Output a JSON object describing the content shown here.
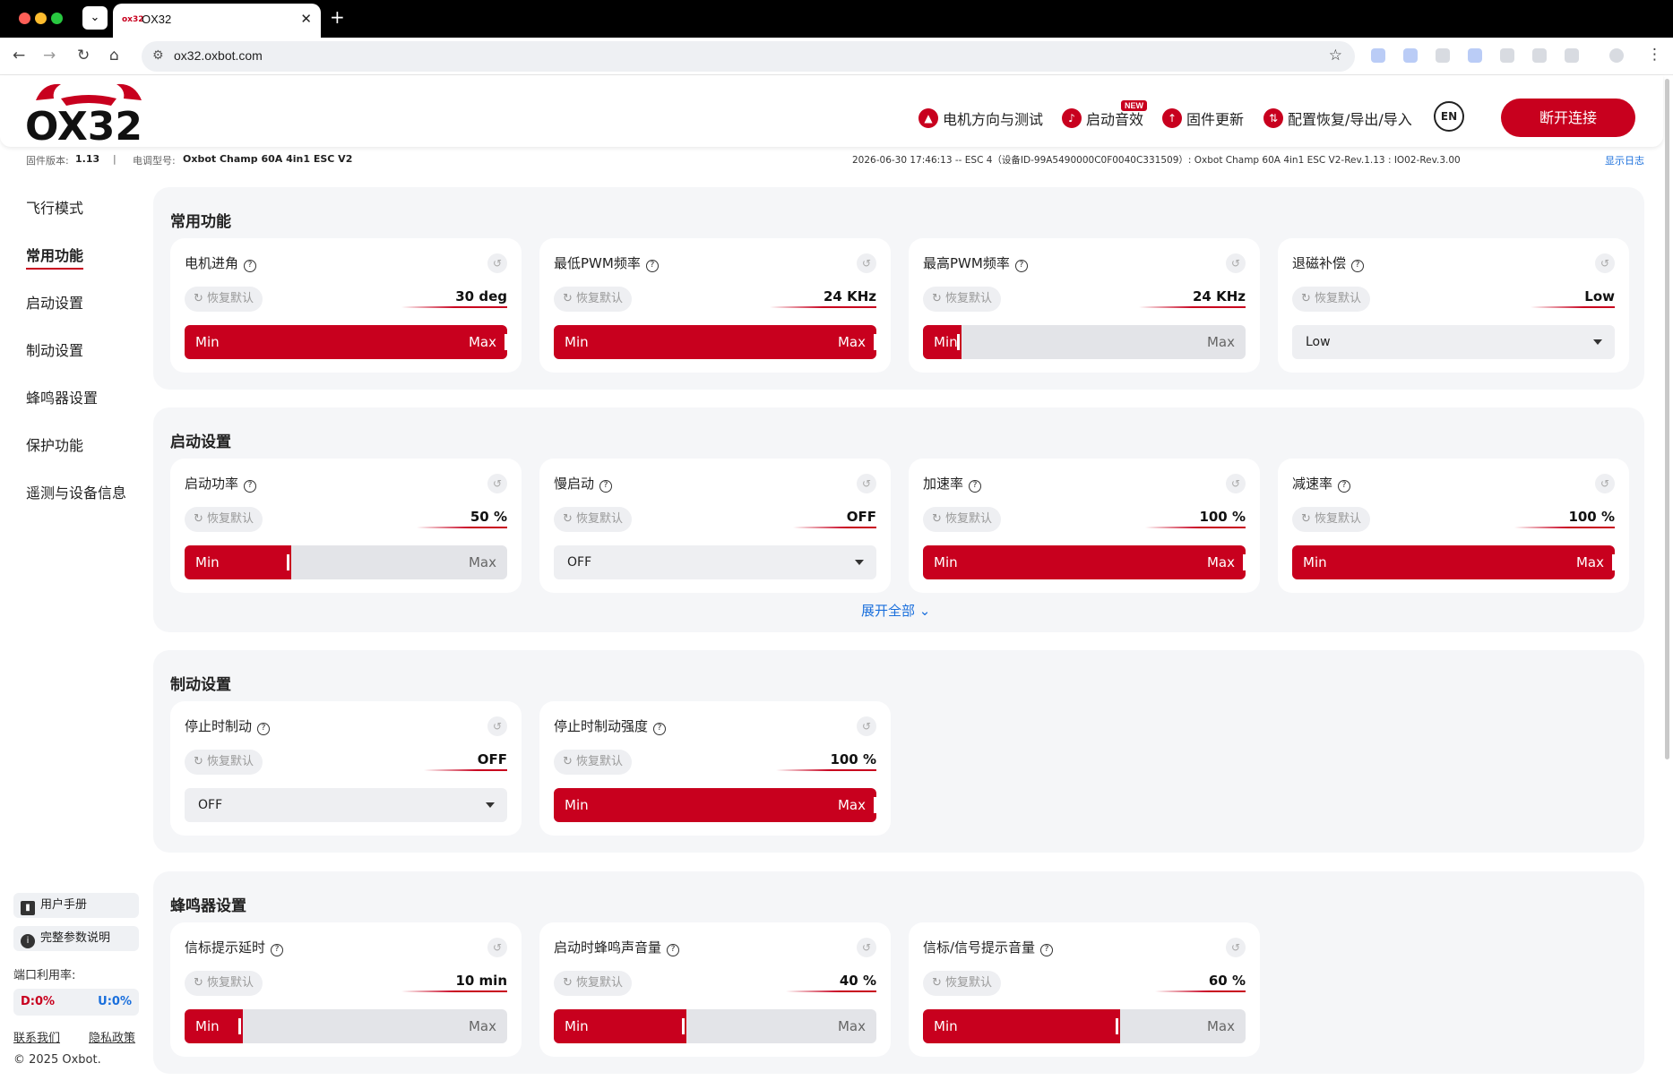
{
  "browser": {
    "tab_title": "OX32",
    "favicon_text": "ox32",
    "url": "ox32.oxbot.com"
  },
  "header": {
    "logo_text": "OX32",
    "nav": [
      {
        "label": "电机方向与测试",
        "icon": "motor-icon"
      },
      {
        "label": "启动音效",
        "icon": "music-icon",
        "badge": "NEW"
      },
      {
        "label": "固件更新",
        "icon": "upload-icon"
      },
      {
        "label": "配置恢复/导出/导入",
        "icon": "sync-icon"
      }
    ],
    "lang_icon": "EN",
    "disconnect_label": "断开连接"
  },
  "infobar": {
    "fw_label": "固件版本:",
    "fw_value": "1.13",
    "esc_label": "电调型号:",
    "esc_value": "Oxbot Champ 60A 4in1 ESC V2",
    "log_text": "2026-06-30 17:46:13 -- ESC 4（设备ID-99A5490000C0F0040C331509）: Oxbot Champ 60A 4in1 ESC V2-Rev.1.13 : IO02-Rev.3.00",
    "show_log": "显示日志"
  },
  "sidebar": {
    "items": [
      "飞行模式",
      "常用功能",
      "启动设置",
      "制动设置",
      "蜂鸣器设置",
      "保护功能",
      "遥测与设备信息"
    ],
    "active": "常用功能",
    "manual": "用户手册",
    "params": "完整参数说明",
    "port_label": "端口利用率:",
    "port_d": "D:0%",
    "port_u": "U:0%",
    "contact": "联系我们",
    "privacy": "隐私政策",
    "copyright": "© 2025 Oxbot."
  },
  "common": {
    "restore": "恢复默认",
    "min": "Min",
    "max": "Max",
    "expand_all": "展开全部"
  },
  "sections": {
    "s1": {
      "title": "常用功能",
      "cards": [
        {
          "label": "电机进角",
          "value": "30 deg",
          "type": "slider",
          "fill": 1.0
        },
        {
          "label": "最低PWM频率",
          "value": "24 KHz",
          "type": "slider",
          "fill": 1.0
        },
        {
          "label": "最高PWM频率",
          "value": "24 KHz",
          "type": "slider",
          "fill": 0.12
        },
        {
          "label": "退磁补偿",
          "value": "Low",
          "type": "select",
          "selected": "Low"
        }
      ]
    },
    "s2": {
      "title": "启动设置",
      "cards": [
        {
          "label": "启动功率",
          "value": "50 %",
          "type": "slider",
          "fill": 0.33
        },
        {
          "label": "慢启动",
          "value": "OFF",
          "type": "select",
          "selected": "OFF"
        },
        {
          "label": "加速率",
          "value": "100 %",
          "type": "slider",
          "fill": 1.0
        },
        {
          "label": "减速率",
          "value": "100 %",
          "type": "slider",
          "fill": 1.0
        }
      ]
    },
    "s3": {
      "title": "制动设置",
      "cards": [
        {
          "label": "停止时制动",
          "value": "OFF",
          "type": "select",
          "selected": "OFF"
        },
        {
          "label": "停止时制动强度",
          "value": "100 %",
          "type": "slider",
          "fill": 1.0
        }
      ]
    },
    "s4": {
      "title": "蜂鸣器设置",
      "cards": [
        {
          "label": "信标提示延时",
          "value": "10 min",
          "type": "slider",
          "fill": 0.18
        },
        {
          "label": "启动时蜂鸣声音量",
          "value": "40 %",
          "type": "slider",
          "fill": 0.41
        },
        {
          "label": "信标/信号提示音量",
          "value": "60 %",
          "type": "slider",
          "fill": 0.61
        }
      ]
    }
  },
  "colors": {
    "accent": "#c8001e",
    "link": "#1a6fdc",
    "section_bg": "#f5f6f8"
  }
}
